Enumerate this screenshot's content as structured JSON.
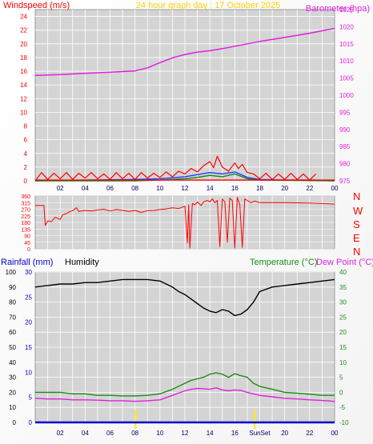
{
  "colors": {
    "wind": "#ff0000",
    "gust": "#ff0000",
    "windAvg": "#1f3cff",
    "windMin": "#0a8a1a",
    "baro": "#e020e0",
    "dir": "#ff0000",
    "rain": "#0000cc",
    "humidity": "#000000",
    "temp": "#1a8a1a",
    "dew": "#e020e0",
    "title": "#ffd000",
    "plotBg": "#d4d4d4",
    "grid": "#ffffff",
    "sun": "#ffee00"
  },
  "header": {
    "windspeed_label": "Windspeed (m/s)",
    "title": "24 hour graph day : 17 October 2025",
    "barometer_label": "Barometer (hpa)"
  },
  "direction_letters": [
    "N",
    "W",
    "S",
    "E",
    "N"
  ],
  "lower_header": {
    "rainfall_label": "Rainfall (mm)",
    "humidity_label": "Humidity",
    "temperature_label": "Temperature (°C)",
    "dewpoint_label": "Dew Point (°C)"
  },
  "chart_data": [
    {
      "type": "line",
      "name": "wind-barometer",
      "x_ticks": [
        "02",
        "04",
        "06",
        "08",
        "10",
        "12",
        "14",
        "16",
        "18",
        "20",
        "22",
        "00"
      ],
      "y_left": {
        "label": "Windspeed (m/s)",
        "range": [
          0,
          25
        ],
        "ticks": [
          0,
          2,
          4,
          6,
          8,
          10,
          12,
          14,
          16,
          18,
          20,
          22,
          24
        ]
      },
      "y_right": {
        "label": "Barometer (hpa)",
        "range": [
          975,
          1025
        ],
        "ticks": [
          975,
          980,
          985,
          990,
          995,
          1000,
          1005,
          1010,
          1015,
          1020,
          1025
        ]
      },
      "series": [
        {
          "name": "Barometer",
          "axis": "right",
          "x": [
            0,
            2,
            4,
            6,
            8,
            9,
            10,
            11,
            12,
            13,
            14,
            15,
            16,
            17,
            18,
            19,
            20,
            21,
            22,
            23,
            24
          ],
          "values": [
            1005.8,
            1006.0,
            1006.4,
            1006.7,
            1007.1,
            1008.0,
            1009.5,
            1010.9,
            1011.9,
            1012.6,
            1013.0,
            1013.6,
            1014.3,
            1015.0,
            1015.7,
            1016.3,
            1016.9,
            1017.5,
            1018.1,
            1018.8,
            1019.5
          ]
        },
        {
          "name": "Wind gust",
          "axis": "left",
          "x": [
            0,
            0.5,
            1,
            1.5,
            2,
            2.5,
            3,
            3.5,
            4,
            4.5,
            5,
            5.5,
            6,
            6.5,
            7,
            7.5,
            8,
            8.5,
            9,
            9.5,
            10,
            10.5,
            11,
            11.5,
            12,
            12.5,
            13,
            13.5,
            14,
            14.3,
            14.6,
            15,
            15.5,
            16,
            16.3,
            16.6,
            17,
            17.5,
            18,
            18.5,
            19,
            19.5,
            20,
            20.5,
            21,
            21.5,
            22,
            22.5
          ],
          "values": [
            0,
            1.2,
            0.2,
            1.1,
            0.3,
            1.2,
            0.2,
            1.1,
            0.4,
            1.2,
            0.3,
            1.0,
            0.2,
            1.2,
            0.3,
            1.1,
            0.2,
            1.2,
            0.4,
            1.1,
            0.5,
            1.3,
            0.6,
            1.4,
            1.0,
            1.8,
            1.3,
            2.2,
            2.8,
            1.9,
            3.6,
            2.0,
            1.4,
            2.6,
            1.8,
            2.4,
            1.2,
            1.0,
            0.3,
            1.1,
            0.2,
            1.0,
            0.2,
            1.1,
            0.2,
            1.0,
            0.1,
            1.0
          ]
        },
        {
          "name": "Average windspeed",
          "axis": "left",
          "x": [
            0,
            4,
            8,
            10,
            12,
            13,
            14,
            15,
            16,
            17,
            18,
            20,
            22,
            24
          ],
          "values": [
            0,
            0.1,
            0.2,
            0.3,
            0.6,
            0.9,
            1.2,
            1.0,
            1.3,
            0.5,
            0.2,
            0.1,
            0.1,
            0
          ],
          "color_key": "windAvg"
        },
        {
          "name": "Minimum windspeed",
          "axis": "left",
          "x": [
            0,
            8,
            10,
            12,
            13,
            14,
            15,
            16,
            17,
            18,
            24
          ],
          "values": [
            0,
            0,
            0.1,
            0.3,
            0.5,
            0.8,
            0.6,
            1.0,
            0.3,
            0.1,
            0
          ],
          "color_key": "windMin"
        },
        {
          "name": "Wind baseline",
          "axis": "left",
          "x": [
            0,
            24
          ],
          "values": [
            0.1,
            0.1
          ]
        }
      ]
    },
    {
      "type": "line",
      "name": "wind-direction",
      "y_range": [
        0,
        360
      ],
      "y_ticks": [
        0,
        45,
        90,
        135,
        180,
        225,
        270,
        315,
        360
      ],
      "series": [
        {
          "name": "Wind direction",
          "x": [
            0,
            0.7,
            0.8,
            1.0,
            1.3,
            1.6,
            2.0,
            2.2,
            2.5,
            2.8,
            3.0,
            3.3,
            3.5,
            4.0,
            4.5,
            5.0,
            5.5,
            6.0,
            6.5,
            7.0,
            7.5,
            8.0,
            8.5,
            9.0,
            9.5,
            10.0,
            10.5,
            11.0,
            11.5,
            12.0,
            12.2,
            12.3,
            12.4,
            12.6,
            12.8,
            13.0,
            13.3,
            13.5,
            13.8,
            14.0,
            14.2,
            14.4,
            14.6,
            14.8,
            15.0,
            15.2,
            15.4,
            15.6,
            15.8,
            16.0,
            16.2,
            16.4,
            16.6,
            16.8,
            17.0,
            17.3,
            17.6,
            18.0,
            20.0,
            22.0,
            24.0
          ],
          "values": [
            295,
            295,
            160,
            190,
            185,
            215,
            200,
            230,
            240,
            255,
            260,
            280,
            255,
            262,
            258,
            265,
            270,
            258,
            268,
            262,
            255,
            262,
            248,
            260,
            262,
            268,
            272,
            280,
            275,
            290,
            40,
            300,
            5,
            310,
            300,
            320,
            295,
            320,
            330,
            320,
            340,
            315,
            330,
            15,
            340,
            320,
            45,
            345,
            330,
            5,
            350,
            300,
            10,
            340,
            330,
            315,
            325,
            315,
            315,
            312,
            305
          ]
        }
      ]
    },
    {
      "type": "line",
      "name": "humidity-temperature",
      "x_ticks": [
        "02",
        "04",
        "06",
        "08",
        "10",
        "12",
        "14",
        "16",
        "SunSet",
        "20",
        "22",
        "00"
      ],
      "y_left_outer": {
        "label": "Humidity",
        "range": [
          0,
          100
        ],
        "ticks": [
          0,
          10,
          20,
          30,
          40,
          50,
          60,
          70,
          80,
          90,
          100
        ]
      },
      "y_left_inner": {
        "label": "Rainfall (mm)",
        "range": [
          0,
          30
        ],
        "ticks": [
          0,
          5,
          10,
          15,
          20,
          25,
          30
        ]
      },
      "y_right": {
        "label": "Temperature (°C)",
        "range": [
          -10,
          40
        ],
        "ticks": [
          -10,
          -5,
          0,
          5,
          10,
          15,
          20,
          25,
          30,
          35,
          40
        ]
      },
      "series": [
        {
          "name": "Humidity",
          "axis": "outer",
          "x": [
            0,
            1,
            2,
            3,
            4,
            5,
            6,
            7,
            8,
            9,
            10,
            11,
            11.5,
            12,
            12.5,
            13,
            13.5,
            14,
            14.5,
            15,
            15.5,
            16,
            16.5,
            17,
            17.5,
            18,
            19,
            20,
            21,
            22,
            23,
            24
          ],
          "values": [
            90,
            91,
            92,
            92,
            93,
            93,
            94,
            95,
            95,
            95,
            94,
            90,
            87,
            85,
            82,
            79,
            76,
            74,
            73,
            75,
            74,
            71,
            72,
            75,
            80,
            87,
            90,
            91,
            92,
            93,
            94,
            95
          ]
        },
        {
          "name": "Temperature",
          "axis": "right",
          "x": [
            0,
            1,
            2,
            3,
            4,
            5,
            6,
            7,
            8,
            9,
            10,
            11,
            12,
            12.5,
            13,
            13.5,
            14,
            14.5,
            15,
            15.5,
            16,
            16.5,
            17,
            17.5,
            18,
            19,
            20,
            21,
            22,
            23,
            24
          ],
          "values": [
            0,
            0,
            0,
            -0.5,
            -0.5,
            -1,
            -1,
            -1.2,
            -1.2,
            -1,
            -0.5,
            1,
            3,
            4,
            4.5,
            5,
            6,
            6.5,
            6,
            5,
            6.2,
            5.5,
            5,
            3,
            2,
            1,
            0,
            -0.3,
            -0.6,
            -1,
            -1
          ]
        },
        {
          "name": "Dew Point",
          "axis": "right",
          "x": [
            0,
            1,
            2,
            3,
            4,
            5,
            6,
            7,
            8,
            9,
            10,
            11,
            12,
            12.5,
            13,
            13.5,
            14,
            14.5,
            15,
            15.5,
            16,
            16.5,
            17,
            18,
            19,
            20,
            21,
            22,
            23,
            24
          ],
          "values": [
            -2,
            -2.2,
            -2.2,
            -2.5,
            -2.5,
            -2.6,
            -2.8,
            -2.8,
            -3,
            -2.8,
            -2.5,
            -1,
            0.5,
            1,
            1.3,
            1.2,
            1,
            1.5,
            0.8,
            0.5,
            0.8,
            0.6,
            0,
            -1,
            -1.5,
            -2,
            -2.2,
            -2.5,
            -2.7,
            -3
          ]
        },
        {
          "name": "Rainfall",
          "axis": "inner",
          "x": [
            0,
            24
          ],
          "values": [
            0,
            0
          ]
        }
      ],
      "sun_markers": [
        {
          "label": "Sunrise",
          "x": 8.05
        },
        {
          "label": "SunSet",
          "x": 17.6
        }
      ]
    }
  ]
}
